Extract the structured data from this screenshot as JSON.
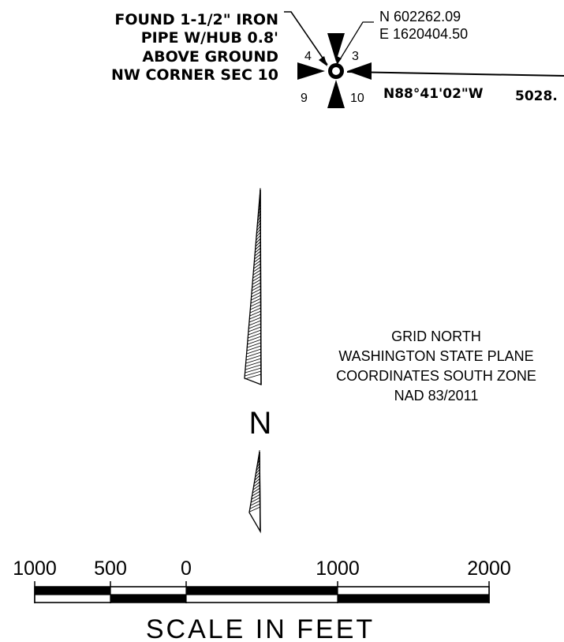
{
  "monument": {
    "description": [
      "FOUND 1-1/2\" IRON",
      "PIPE W/HUB 0.8'",
      "ABOVE GROUND",
      "NW CORNER SEC 10"
    ],
    "northing": "N 602262.09",
    "easting": "E 1620404.50",
    "sections": {
      "nw": "4",
      "ne": "3",
      "sw": "9",
      "se": "10"
    }
  },
  "section_line": {
    "bearing": "N88°41'02\"W",
    "distance": "5028."
  },
  "north_arrow": {
    "letter": "N",
    "note": [
      "GRID NORTH",
      "WASHINGTON STATE PLANE",
      "COORDINATES SOUTH ZONE",
      "NAD 83/2011"
    ]
  },
  "scale_bar": {
    "tick_labels": [
      "1000",
      "500",
      "0",
      "1000",
      "2000"
    ],
    "title": "SCALE IN FEET"
  }
}
